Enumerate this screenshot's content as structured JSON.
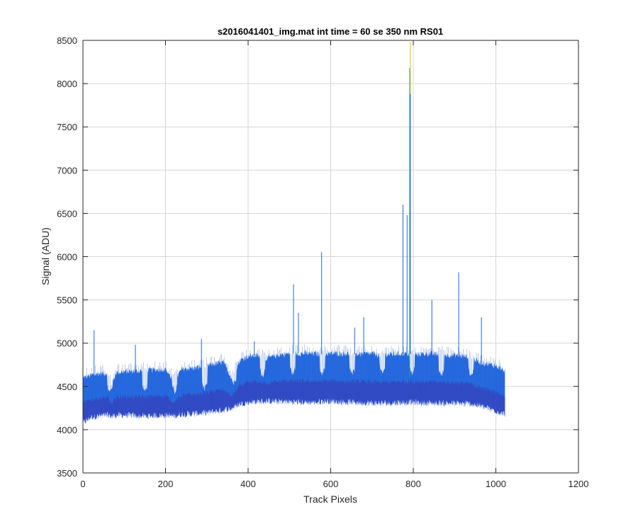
{
  "chart_data": {
    "type": "line",
    "title": "s2016041401_img.mat int time = 60 se  350 nm RS01",
    "xlabel": "Track Pixels",
    "ylabel": "Signal (ADU)",
    "xlim": [
      0,
      1200
    ],
    "ylim": [
      3500,
      8500
    ],
    "xticks": [
      0,
      200,
      400,
      600,
      800,
      1000,
      1200
    ],
    "yticks": [
      3500,
      4000,
      4500,
      5000,
      5500,
      6000,
      6500,
      7000,
      7500,
      8000,
      8500
    ],
    "grid": true,
    "legend": "none",
    "colors": {
      "upper": "#1a66e0",
      "lower": "#3a3fb8",
      "band": "#2550c8",
      "peak": "#f5d23a",
      "grid": "#d6d6d6",
      "axis": "#262626"
    },
    "series": [
      {
        "x": [
          0,
          20,
          40,
          60,
          70,
          80,
          100,
          140,
          160,
          200,
          220,
          240,
          280,
          300,
          340,
          360,
          380,
          400,
          420,
          440,
          480,
          500,
          520,
          560,
          580,
          600,
          640,
          660,
          700,
          720,
          740,
          780,
          800,
          840,
          880,
          900,
          940,
          960,
          980,
          1000,
          1022
        ],
        "upper": [
          4600,
          4630,
          4650,
          4650,
          4500,
          4660,
          4670,
          4680,
          4690,
          4700,
          4560,
          4700,
          4720,
          4740,
          4780,
          4600,
          4800,
          4850,
          4860,
          4820,
          4870,
          4880,
          4880,
          4880,
          4870,
          4880,
          4880,
          4870,
          4880,
          4860,
          4870,
          4880,
          4870,
          4880,
          4860,
          4860,
          4840,
          4780,
          4760,
          4740,
          4680
        ],
        "lower": [
          4080,
          4150,
          4160,
          4170,
          4160,
          4170,
          4170,
          4160,
          4160,
          4170,
          4160,
          4180,
          4190,
          4200,
          4230,
          4250,
          4300,
          4320,
          4330,
          4330,
          4330,
          4330,
          4320,
          4320,
          4330,
          4330,
          4320,
          4320,
          4310,
          4310,
          4310,
          4320,
          4320,
          4310,
          4310,
          4310,
          4300,
          4280,
          4250,
          4220,
          4180
        ],
        "dips": [
          {
            "x": 65,
            "y": 4430
          },
          {
            "x": 150,
            "y": 4440
          },
          {
            "x": 222,
            "y": 4430
          },
          {
            "x": 295,
            "y": 4460
          },
          {
            "x": 365,
            "y": 4530
          },
          {
            "x": 435,
            "y": 4620
          },
          {
            "x": 508,
            "y": 4640
          },
          {
            "x": 580,
            "y": 4640
          },
          {
            "x": 652,
            "y": 4630
          },
          {
            "x": 725,
            "y": 4640
          },
          {
            "x": 797,
            "y": 4640
          },
          {
            "x": 868,
            "y": 4620
          },
          {
            "x": 940,
            "y": 4620
          }
        ],
        "spikes": [
          {
            "x": 27,
            "y": 5150
          },
          {
            "x": 127,
            "y": 4980
          },
          {
            "x": 287,
            "y": 5050
          },
          {
            "x": 415,
            "y": 5020
          },
          {
            "x": 510,
            "y": 5680
          },
          {
            "x": 522,
            "y": 5350
          },
          {
            "x": 578,
            "y": 6050
          },
          {
            "x": 658,
            "y": 5180
          },
          {
            "x": 680,
            "y": 5300
          },
          {
            "x": 775,
            "y": 6600
          },
          {
            "x": 785,
            "y": 6480
          },
          {
            "x": 793,
            "y": 8480
          },
          {
            "x": 845,
            "y": 5500
          },
          {
            "x": 910,
            "y": 5820
          },
          {
            "x": 965,
            "y": 5300
          }
        ]
      }
    ]
  }
}
